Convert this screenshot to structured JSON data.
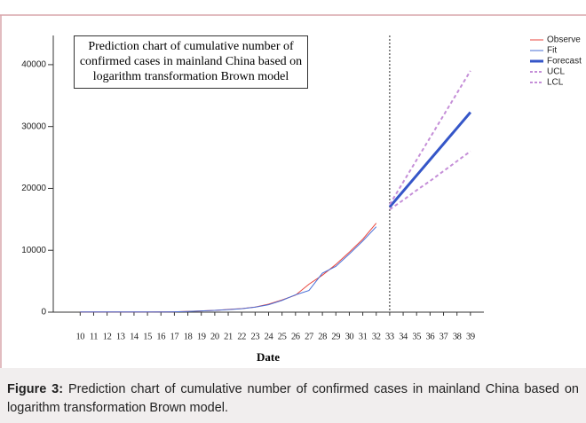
{
  "chart_data": {
    "type": "line",
    "title": "Prediction chart of cumulative number of confirmed cases in mainland China based on logarithm transformation Brown model",
    "x_label": "Date",
    "x": [
      10,
      11,
      12,
      13,
      14,
      15,
      16,
      17,
      18,
      19,
      20,
      21,
      22,
      23,
      24,
      25,
      26,
      27,
      28,
      29,
      30,
      31,
      32,
      33,
      34,
      35,
      36,
      37,
      38,
      39
    ],
    "xlim": [
      8,
      40
    ],
    "xticks": [
      10,
      11,
      12,
      13,
      14,
      15,
      16,
      17,
      18,
      19,
      20,
      21,
      22,
      23,
      24,
      25,
      26,
      27,
      28,
      29,
      30,
      31,
      32,
      33,
      34,
      35,
      36,
      37,
      38,
      39
    ],
    "ylim": [
      0,
      44000
    ],
    "yticks": [
      0,
      10000,
      20000,
      30000,
      40000
    ],
    "vline": 33,
    "legend": "right",
    "series": [
      {
        "name": "Observe",
        "color": "#e8453c",
        "linewidth": 1,
        "dashed": false,
        "values": [
          41,
          41,
          41,
          41,
          41,
          41,
          45,
          62,
          121,
          198,
          291,
          440,
          571,
          830,
          1287,
          1975,
          2744,
          4515,
          5974,
          7711,
          9692,
          11791,
          14380,
          null,
          null,
          null,
          null,
          null,
          null,
          null
        ]
      },
      {
        "name": "Fit",
        "color": "#4a6fd6",
        "linewidth": 1,
        "dashed": false,
        "values": [
          41,
          41,
          41,
          41,
          41,
          41,
          43,
          55,
          110,
          190,
          280,
          420,
          560,
          800,
          1200,
          1900,
          2800,
          3500,
          6300,
          7400,
          9400,
          11500,
          13800,
          null,
          null,
          null,
          null,
          null,
          null,
          null
        ]
      },
      {
        "name": "Forecast",
        "color": "#3556c8",
        "linewidth": 3,
        "dashed": false,
        "values": [
          null,
          null,
          null,
          null,
          null,
          null,
          null,
          null,
          null,
          null,
          null,
          null,
          null,
          null,
          null,
          null,
          null,
          null,
          null,
          null,
          null,
          null,
          null,
          17000,
          19550,
          22100,
          24650,
          27200,
          29750,
          32300
        ]
      },
      {
        "name": "UCL",
        "color": "#c58fd8",
        "linewidth": 2,
        "dashed": true,
        "values": [
          null,
          null,
          null,
          null,
          null,
          null,
          null,
          null,
          null,
          null,
          null,
          null,
          null,
          null,
          null,
          null,
          null,
          null,
          null,
          null,
          null,
          null,
          null,
          17400,
          21000,
          24600,
          28200,
          31800,
          35400,
          39000
        ]
      },
      {
        "name": "LCL",
        "color": "#c58fd8",
        "linewidth": 2,
        "dashed": true,
        "values": [
          null,
          null,
          null,
          null,
          null,
          null,
          null,
          null,
          null,
          null,
          null,
          null,
          null,
          null,
          null,
          null,
          null,
          null,
          null,
          null,
          null,
          null,
          null,
          16600,
          18100,
          19700,
          21200,
          22800,
          24400,
          26000
        ]
      }
    ]
  },
  "caption": {
    "label": "Figure 3:",
    "text": "Prediction chart of cumulative number of confirmed cases in mainland China based on logarithm transformation Brown model."
  }
}
